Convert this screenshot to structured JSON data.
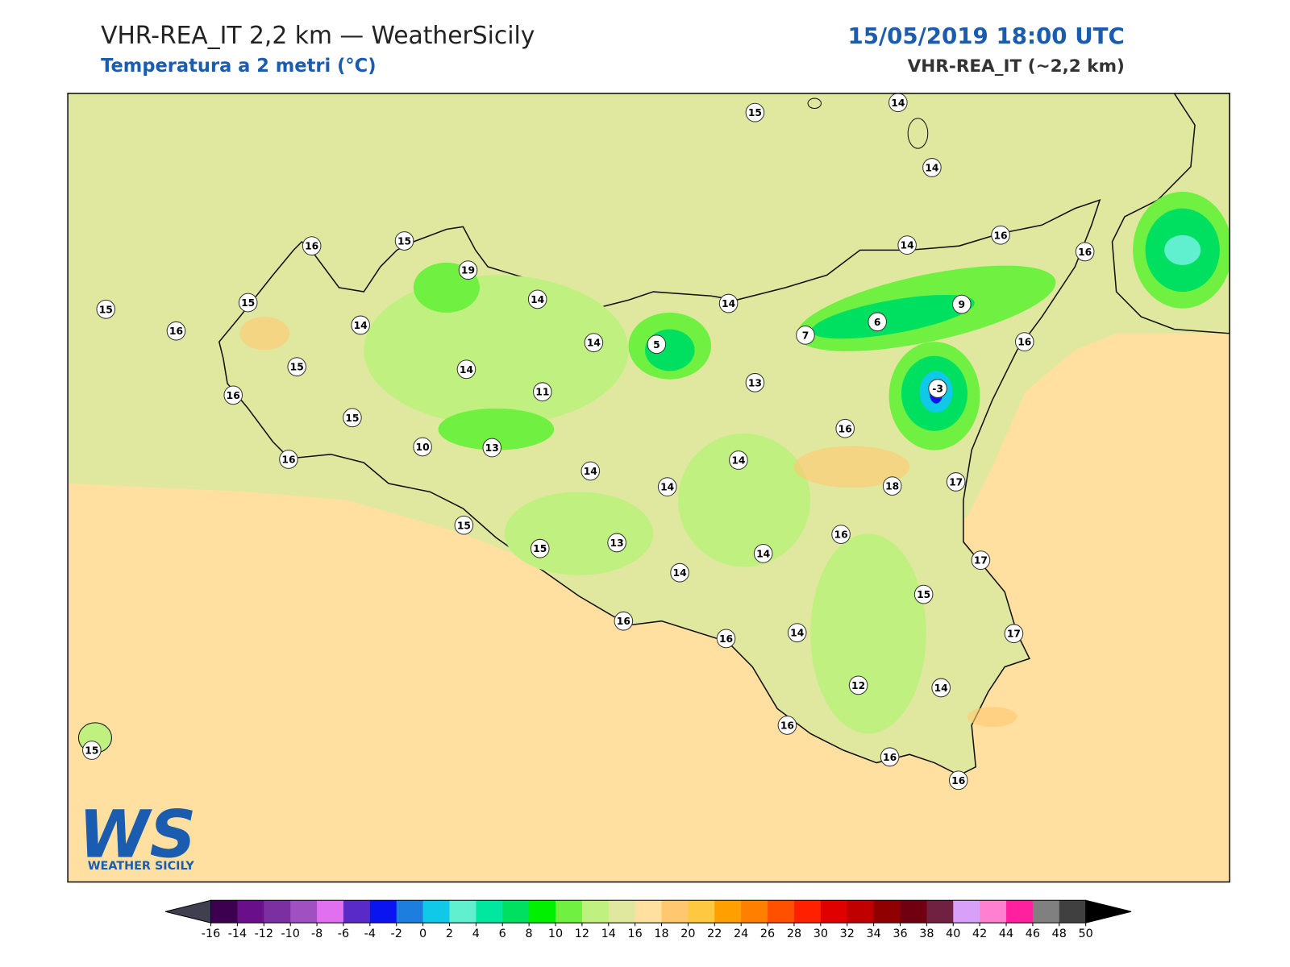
{
  "header": {
    "title": "VHR-REA_IT 2,2 km — WeatherSicily",
    "subtitle": "Temperatura a 2 metri (°C)",
    "datetime": "15/05/2019 18:00 UTC",
    "model": "VHR-REA_IT (~2,2 km)"
  },
  "map": {
    "station_values": [
      15,
      14,
      14,
      16,
      15,
      19,
      14,
      16,
      16,
      15,
      15,
      14,
      14,
      9,
      16,
      14,
      14,
      5,
      7,
      6,
      16,
      15,
      14,
      13,
      -3,
      16,
      11,
      15,
      16,
      10,
      13,
      16,
      14,
      14,
      14,
      18,
      17,
      15,
      16,
      15,
      13,
      14,
      17,
      14,
      15,
      16,
      16,
      14,
      17,
      12,
      14,
      16,
      15,
      16,
      16
    ]
  },
  "logo": {
    "mark": "WS",
    "text": "WEATHER SICILY"
  },
  "colorbar": {
    "ticks": [
      -16,
      -14,
      -12,
      -10,
      -8,
      -6,
      -4,
      -2,
      0,
      2,
      4,
      6,
      8,
      10,
      12,
      14,
      16,
      18,
      20,
      22,
      24,
      26,
      28,
      30,
      32,
      34,
      36,
      38,
      40,
      42,
      44,
      46,
      48,
      50
    ],
    "under_color": "#3f3f4f",
    "over_color": "#000000",
    "colors": [
      "#3d0050",
      "#6a0f8a",
      "#7b2fa0",
      "#a050c0",
      "#e070f0",
      "#5a2ac8",
      "#0a14f0",
      "#1e7ee0",
      "#10c8e8",
      "#60f0d0",
      "#00e8a0",
      "#00e060",
      "#00f000",
      "#70f040",
      "#c0f080",
      "#e0e8a0",
      "#ffe0a0",
      "#ffc870",
      "#ffc840",
      "#ffa000",
      "#ff8000",
      "#ff5000",
      "#ff2000",
      "#e00000",
      "#c00000",
      "#900000",
      "#700010",
      "#702040",
      "#d8a0f8",
      "#ff80d0",
      "#ff20a0",
      "#808080",
      "#404040"
    ]
  }
}
